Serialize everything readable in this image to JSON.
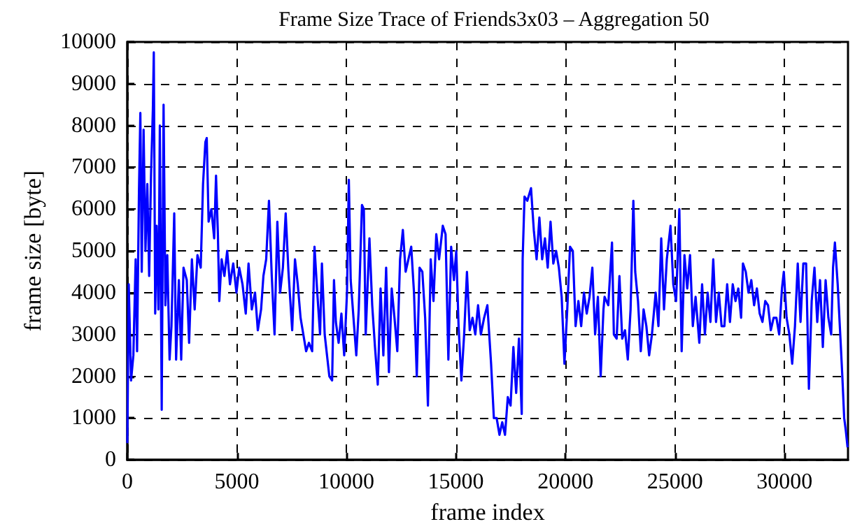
{
  "chart_data": {
    "type": "line",
    "title": "Frame Size Trace of Friends3x03 – Aggregation 50",
    "xlabel": "frame index",
    "ylabel": "frame size [byte]",
    "xlim": [
      0,
      32900
    ],
    "xticks": [
      0,
      5000,
      10000,
      15000,
      20000,
      25000,
      30000
    ],
    "ylim": [
      0,
      10000
    ],
    "yticks": [
      0,
      1000,
      2000,
      3000,
      4000,
      5000,
      6000,
      7000,
      8000,
      9000,
      10000
    ],
    "grid": true,
    "marker": "none",
    "line_style": "solid",
    "series": [
      {
        "color": "#0000ff",
        "x": [
          0,
          64,
          170,
          275,
          380,
          445,
          530,
          594,
          657,
          742,
          827,
          912,
          996,
          1081,
          1166,
          1208,
          1272,
          1336,
          1420,
          1484,
          1569,
          1654,
          1738,
          1823,
          1929,
          2014,
          2141,
          2226,
          2353,
          2459,
          2565,
          2714,
          2820,
          2947,
          3074,
          3201,
          3350,
          3456,
          3562,
          3625,
          3710,
          3837,
          3964,
          4049,
          4134,
          4198,
          4304,
          4431,
          4558,
          4685,
          4834,
          4982,
          5109,
          5258,
          5406,
          5533,
          5682,
          5830,
          5957,
          6106,
          6212,
          6339,
          6466,
          6593,
          6720,
          6848,
          6975,
          7102,
          7229,
          7356,
          7526,
          7653,
          7780,
          7908,
          8035,
          8162,
          8289,
          8438,
          8544,
          8671,
          8798,
          8883,
          9010,
          9137,
          9222,
          9349,
          9434,
          9519,
          9646,
          9773,
          9900,
          10028,
          10112,
          10197,
          10324,
          10452,
          10564,
          10712,
          10797,
          10882,
          11052,
          11179,
          11306,
          11433,
          11560,
          11688,
          11815,
          11942,
          12069,
          12196,
          12324,
          12451,
          12578,
          12705,
          12832,
          12960,
          13087,
          13214,
          13341,
          13468,
          13596,
          13723,
          13850,
          13977,
          14104,
          14232,
          14401,
          14528,
          14656,
          14783,
          14910,
          15016,
          15122,
          15249,
          15376,
          15504,
          15631,
          15758,
          15885,
          16012,
          16140,
          16288,
          16436,
          16606,
          16733,
          16860,
          16988,
          17115,
          17242,
          17369,
          17496,
          17624,
          17751,
          17878,
          18005,
          18047,
          18132,
          18260,
          18429,
          18556,
          18684,
          18811,
          18938,
          19065,
          19192,
          19320,
          19447,
          19574,
          19701,
          19828,
          19956,
          20083,
          20210,
          20337,
          20464,
          20592,
          20719,
          20846,
          20973,
          21100,
          21228,
          21355,
          21482,
          21609,
          21736,
          21787,
          21956,
          22126,
          22211,
          22338,
          22465,
          22592,
          22720,
          22847,
          22974,
          23101,
          23186,
          23313,
          23440,
          23568,
          23695,
          23822,
          23949,
          24119,
          24246,
          24373,
          24500,
          24628,
          24797,
          24924,
          25052,
          25200,
          25306,
          25434,
          25561,
          25688,
          25815,
          25942,
          26112,
          26239,
          26366,
          26493,
          26620,
          26748,
          26875,
          27002,
          27129,
          27256,
          27384,
          27511,
          27638,
          27765,
          27892,
          28020,
          28104,
          28232,
          28359,
          28486,
          28613,
          28740,
          28868,
          28995,
          29122,
          29249,
          29376,
          29504,
          29631,
          29758,
          29885,
          29970,
          30097,
          30224,
          30352,
          30479,
          30606,
          30733,
          30860,
          30988,
          31115,
          31242,
          31369,
          31496,
          31624,
          31751,
          31878,
          32005,
          32132,
          32217,
          32302,
          32429,
          32556,
          32641,
          32726,
          32800,
          32880
        ],
        "values": [
          400,
          4200,
          1900,
          2500,
          4800,
          2600,
          6400,
          8300,
          4500,
          7900,
          5000,
          6600,
          4400,
          6800,
          8400,
          9750,
          3500,
          5600,
          3600,
          8000,
          1200,
          8500,
          3700,
          4900,
          2400,
          3200,
          5900,
          2400,
          4300,
          2400,
          4600,
          4300,
          2800,
          4800,
          3600,
          4900,
          4600,
          6600,
          7600,
          7700,
          5700,
          6000,
          5300,
          6800,
          5400,
          3800,
          4800,
          4400,
          5000,
          4200,
          4700,
          4000,
          4600,
          4200,
          3500,
          4700,
          3600,
          4000,
          3100,
          3600,
          4400,
          4800,
          6200,
          4400,
          3000,
          5700,
          4000,
          4600,
          5900,
          4500,
          3100,
          4800,
          4200,
          3400,
          3000,
          2600,
          2800,
          2600,
          5100,
          4000,
          3000,
          4700,
          3000,
          2400,
          2000,
          1900,
          4300,
          3300,
          2800,
          3500,
          2500,
          4000,
          6700,
          4300,
          3400,
          2500,
          3600,
          6100,
          6000,
          3000,
          5300,
          3700,
          2700,
          1800,
          4100,
          2500,
          4600,
          2100,
          4100,
          3400,
          2600,
          4800,
          5500,
          4500,
          4800,
          5100,
          4000,
          2000,
          4600,
          4500,
          3400,
          1300,
          4800,
          3800,
          5400,
          4800,
          5600,
          5400,
          2400,
          5100,
          4300,
          5000,
          3200,
          1900,
          3000,
          4500,
          3100,
          3400,
          3000,
          3700,
          3000,
          3400,
          3700,
          2300,
          1000,
          1000,
          600,
          900,
          600,
          1500,
          1300,
          2700,
          1600,
          2900,
          1100,
          4800,
          6300,
          6200,
          6500,
          5500,
          4800,
          5800,
          4800,
          5300,
          4600,
          5700,
          4700,
          5000,
          4600,
          3900,
          2300,
          3600,
          5100,
          5000,
          3200,
          3800,
          3200,
          4000,
          3500,
          3900,
          4600,
          3000,
          3900,
          2000,
          3600,
          3900,
          3700,
          5200,
          3000,
          2900,
          4400,
          2900,
          3100,
          2400,
          3600,
          6200,
          4500,
          3800,
          2600,
          3600,
          3200,
          2500,
          3000,
          4000,
          3200,
          5300,
          3600,
          4800,
          5600,
          4200,
          3800,
          6000,
          2600,
          4900,
          4100,
          4900,
          3200,
          3900,
          2800,
          4200,
          3000,
          4000,
          3300,
          4800,
          3300,
          4000,
          3200,
          3200,
          4200,
          3300,
          4200,
          3800,
          4100,
          3400,
          4700,
          4500,
          4000,
          4300,
          3700,
          4100,
          3500,
          3300,
          3800,
          3700,
          3100,
          3400,
          3400,
          3000,
          4100,
          4500,
          3400,
          3000,
          2300,
          3200,
          4700,
          3300,
          4700,
          4700,
          1700,
          3800,
          4600,
          3300,
          4300,
          2700,
          4300,
          3400,
          3000,
          4600,
          5200,
          4200,
          2900,
          2000,
          1000,
          700,
          300
        ]
      }
    ]
  }
}
